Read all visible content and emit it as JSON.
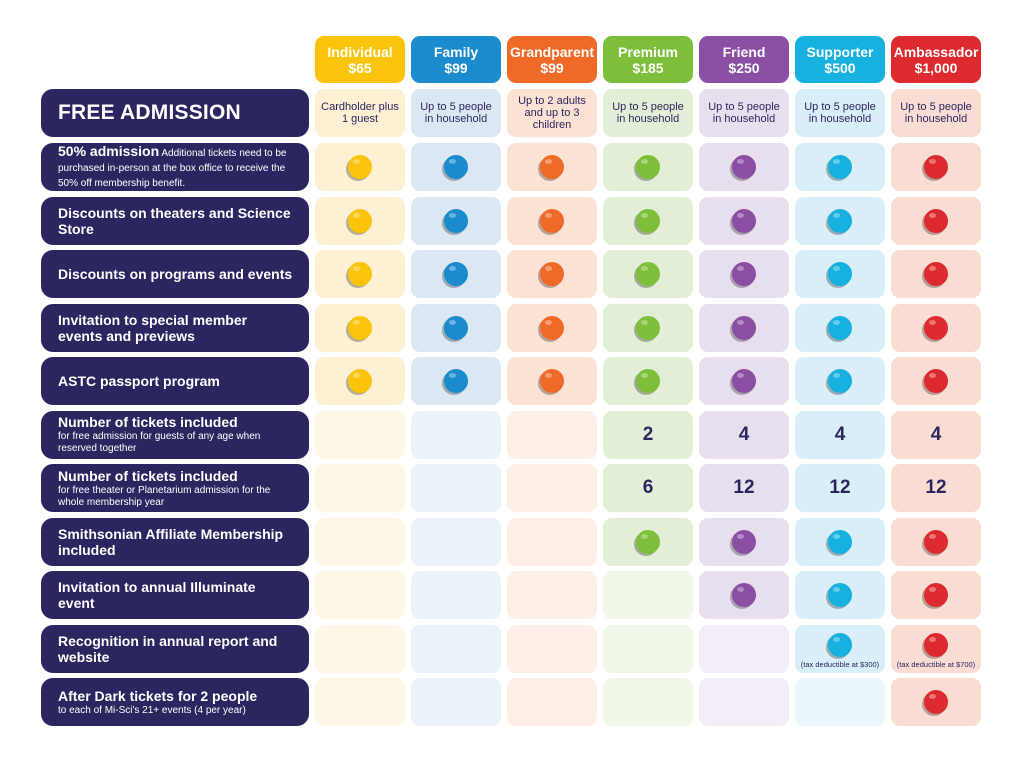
{
  "tiers": [
    {
      "name": "Individual",
      "price": "$65",
      "color": "#f9c409",
      "fill": "#fdf0d3",
      "note": "Cardholder plus 1 guest"
    },
    {
      "name": "Family",
      "price": "$99",
      "color": "#1b8bcd",
      "fill": "#dce7f4",
      "note": "Up to 5 people in household"
    },
    {
      "name": "Grandparent",
      "price": "$99",
      "color": "#ee6a26",
      "fill": "#fbe2d3",
      "note": "Up to 2 adults and up to 3 children"
    },
    {
      "name": "Premium",
      "price": "$185",
      "color": "#7dbf3b",
      "fill": "#e3eed6",
      "note": "Up to 5 people in household"
    },
    {
      "name": "Friend",
      "price": "$250",
      "color": "#8a4ea3",
      "fill": "#e7dfee",
      "note": "Up to 5 people in household"
    },
    {
      "name": "Supporter",
      "price": "$500",
      "color": "#16b1df",
      "fill": "#d8eef8",
      "note": "Up to 5 people in household"
    },
    {
      "name": "Ambassador",
      "price": "$1,000",
      "color": "#dd2a2f",
      "fill": "#f9dcd2",
      "note": "Up to 5 people in household"
    }
  ],
  "free_admission": "FREE ADMISSION",
  "benefits": [
    {
      "title": "50% admission",
      "inline": " Additional tickets need to be purchased in-person at the box office to receive the 50% off membership benefit.",
      "sub": "",
      "cells": [
        "dot",
        "dot",
        "dot",
        "dot",
        "dot",
        "dot",
        "dot"
      ]
    },
    {
      "title": "Discounts on theaters and Science Store",
      "inline": "",
      "sub": "",
      "cells": [
        "dot",
        "dot",
        "dot",
        "dot",
        "dot",
        "dot",
        "dot"
      ]
    },
    {
      "title": "Discounts on programs and events",
      "inline": "",
      "sub": "",
      "cells": [
        "dot",
        "dot",
        "dot",
        "dot",
        "dot",
        "dot",
        "dot"
      ]
    },
    {
      "title": "Invitation to special member events and previews",
      "inline": "",
      "sub": "",
      "cells": [
        "dot",
        "dot",
        "dot",
        "dot",
        "dot",
        "dot",
        "dot"
      ]
    },
    {
      "title": "ASTC passport program",
      "inline": "",
      "sub": "",
      "cells": [
        "dot",
        "dot",
        "dot",
        "dot",
        "dot",
        "dot",
        "dot"
      ]
    },
    {
      "title": "Number of tickets included",
      "inline": "",
      "sub": "for free admission for guests of any age when reserved together",
      "cells": [
        "",
        "",
        "",
        "2",
        "4",
        "4",
        "4"
      ]
    },
    {
      "title": "Number of tickets included",
      "inline": "",
      "sub": "for free theater or Planetarium admission for the whole membership year",
      "cells": [
        "",
        "",
        "",
        "6",
        "12",
        "12",
        "12"
      ]
    },
    {
      "title": "Smithsonian Affiliate Membership included",
      "inline": "",
      "sub": "",
      "cells": [
        "",
        "",
        "",
        "dot",
        "dot",
        "dot",
        "dot"
      ]
    },
    {
      "title": "Invitation to annual Illuminate event",
      "inline": "",
      "sub": "",
      "cells": [
        "",
        "",
        "",
        "",
        "dot",
        "dot",
        "dot"
      ]
    },
    {
      "title": "Recognition in annual report and website",
      "inline": "",
      "sub": "",
      "cells": [
        "",
        "",
        "",
        "",
        "",
        "dot",
        "dot"
      ],
      "notes": [
        "",
        "",
        "",
        "",
        "",
        "(tax deductible at $300)",
        "(tax deductible at $700)"
      ]
    },
    {
      "title": "After Dark tickets for 2 people",
      "inline": "",
      "sub": "to each of Mi-Sci's 21+ events (4 per year)",
      "cells": [
        "",
        "",
        "",
        "",
        "",
        "",
        "dot"
      ]
    }
  ]
}
